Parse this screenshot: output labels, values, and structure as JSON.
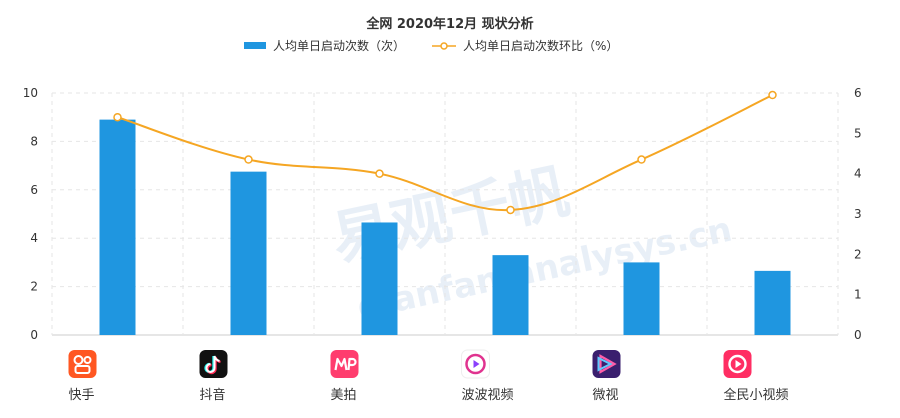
{
  "chart_data": {
    "type": "bar",
    "title": "全网 2020年12月 现状分析",
    "categories": [
      "快手",
      "抖音",
      "美拍",
      "波波视频",
      "微视",
      "全民小视频"
    ],
    "series": [
      {
        "name": "人均单日启动次数（次）",
        "type": "bar",
        "axis": "left",
        "color": "#1f96e0",
        "values": [
          8.9,
          6.75,
          4.65,
          3.3,
          3.0,
          2.65
        ]
      },
      {
        "name": "人均单日启动次数环比（%）",
        "type": "line",
        "axis": "right",
        "color": "#f5a623",
        "values": [
          5.4,
          4.35,
          4.0,
          3.1,
          4.35,
          5.95
        ]
      }
    ],
    "ylim_left": [
      0,
      10
    ],
    "yticks_left": [
      0,
      2,
      4,
      6,
      8,
      10
    ],
    "ylim_right": [
      0,
      6
    ],
    "yticks_right": [
      0,
      1,
      2,
      3,
      4,
      5,
      6
    ],
    "grid": true,
    "legend_position": "top-center"
  },
  "icons": [
    {
      "name": "kuaishou-icon",
      "bg": "#ff5722"
    },
    {
      "name": "douyin-icon",
      "bg": "#111111"
    },
    {
      "name": "meipai-icon",
      "bg": "#ff3d6e"
    },
    {
      "name": "bobo-icon",
      "bg": "#ffffff"
    },
    {
      "name": "weishi-icon",
      "bg": "#3a1f6e"
    },
    {
      "name": "quanmin-icon",
      "bg": "#ff2e63"
    }
  ],
  "watermark": {
    "text_cn": "易观千帆",
    "text_en": "qianfan.analysys.cn"
  }
}
